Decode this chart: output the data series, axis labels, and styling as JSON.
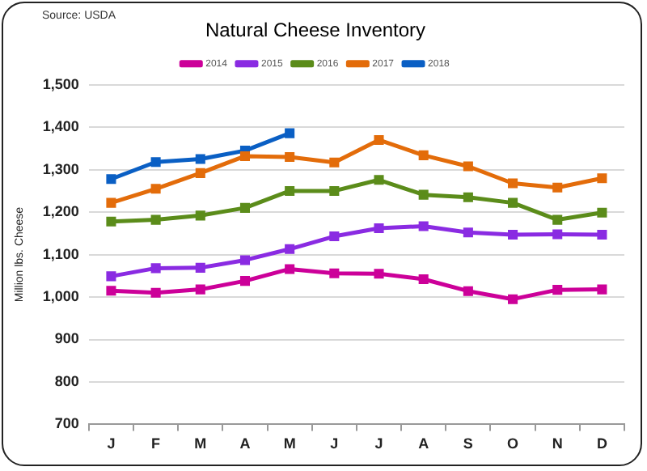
{
  "chart_data": {
    "type": "line",
    "title": "Natural Cheese Inventory",
    "ylabel": "Million lbs. Cheese",
    "annotations": [
      "Source: USDA"
    ],
    "categories": [
      "J",
      "F",
      "M",
      "A",
      "M",
      "J",
      "J",
      "A",
      "S",
      "O",
      "N",
      "D"
    ],
    "series": [
      {
        "name": "2014",
        "color": "#cc0099",
        "values": [
          1015,
          1010,
          1018,
          1038,
          1066,
          1056,
          1055,
          1042,
          1014,
          995,
          1017,
          1018
        ]
      },
      {
        "name": "2015",
        "color": "#8a2be2",
        "values": [
          1049,
          1068,
          1069,
          1087,
          1113,
          1143,
          1162,
          1167,
          1152,
          1147,
          1148,
          1147
        ]
      },
      {
        "name": "2016",
        "color": "#5b8c1a",
        "values": [
          1178,
          1182,
          1192,
          1210,
          1250,
          1250,
          1276,
          1241,
          1235,
          1222,
          1182,
          1199
        ]
      },
      {
        "name": "2017",
        "color": "#e36c0a",
        "values": [
          1222,
          1255,
          1292,
          1332,
          1330,
          1317,
          1370,
          1334,
          1308,
          1268,
          1258,
          1280
        ]
      },
      {
        "name": "2018",
        "color": "#0a5fc4",
        "values": [
          1278,
          1318,
          1325,
          1345,
          1386,
          null,
          null,
          null,
          null,
          null,
          null,
          null
        ]
      }
    ],
    "ylim": [
      700,
      1500
    ],
    "yticks": [
      {
        "value": 700,
        "label": "700"
      },
      {
        "value": 800,
        "label": "800"
      },
      {
        "value": 900,
        "label": "900"
      },
      {
        "value": 1000,
        "label": "1,000"
      },
      {
        "value": 1100,
        "label": "1,100"
      },
      {
        "value": 1200,
        "label": "1,200"
      },
      {
        "value": 1300,
        "label": "1,300"
      },
      {
        "value": 1400,
        "label": "1,400"
      },
      {
        "value": 1500,
        "label": "1,500"
      }
    ],
    "grid": "y",
    "legend": "top",
    "marker": "square",
    "line_style": "solid"
  }
}
